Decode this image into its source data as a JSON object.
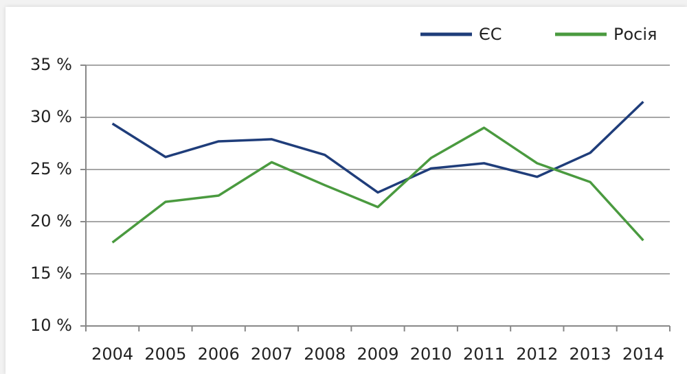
{
  "chart_data": {
    "type": "line",
    "categories": [
      "2004",
      "2005",
      "2006",
      "2007",
      "2008",
      "2009",
      "2010",
      "2011",
      "2012",
      "2013",
      "2014"
    ],
    "series": [
      {
        "name": "ЄС",
        "color": "#1f3d7a",
        "values": [
          29.4,
          26.2,
          27.7,
          27.9,
          26.4,
          22.8,
          25.1,
          25.6,
          24.3,
          26.6,
          31.5
        ]
      },
      {
        "name": "Росія",
        "color": "#4a9a3f",
        "values": [
          18.0,
          21.9,
          22.5,
          25.7,
          23.5,
          21.4,
          26.1,
          29.0,
          25.6,
          23.8,
          18.2
        ]
      }
    ],
    "ylim": [
      10,
      35
    ],
    "yticks": [
      {
        "value": 10,
        "label": "10 %"
      },
      {
        "value": 15,
        "label": "15 %"
      },
      {
        "value": 20,
        "label": "20 %"
      },
      {
        "value": 25,
        "label": "25 %"
      },
      {
        "value": 30,
        "label": "30 %"
      },
      {
        "value": 35,
        "label": "35 %"
      }
    ],
    "grid": true,
    "legend": "top-right"
  }
}
